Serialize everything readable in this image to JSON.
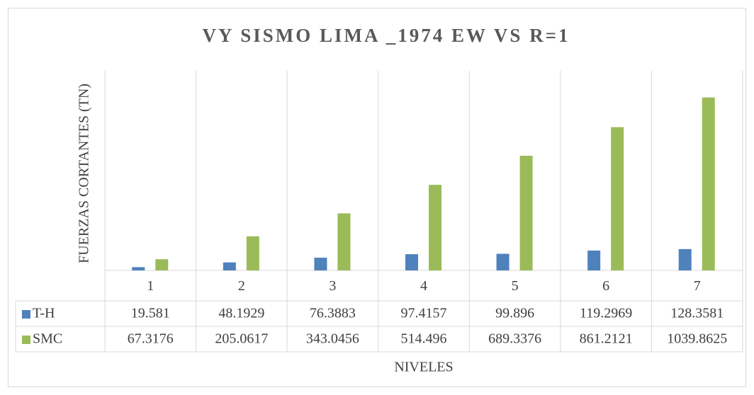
{
  "chart_data": {
    "type": "bar",
    "title": "VY SISMO LIMA _1974 EW VS R=1",
    "y_label": "FUERZAS CORTANTES (TN)",
    "x_label": "NIVELES",
    "categories": [
      "1",
      "2",
      "3",
      "4",
      "5",
      "6",
      "7"
    ],
    "series": [
      {
        "name": "T-H",
        "color": "#4f81bd",
        "values": [
          19.581,
          48.1929,
          76.3883,
          97.4157,
          99.896,
          119.2969,
          128.3581
        ]
      },
      {
        "name": "SMC",
        "color": "#9bbb59",
        "values": [
          67.3176,
          205.0617,
          343.0456,
          514.496,
          689.3376,
          861.2121,
          1039.8625
        ]
      }
    ],
    "ylim": [
      0,
      1200
    ]
  }
}
